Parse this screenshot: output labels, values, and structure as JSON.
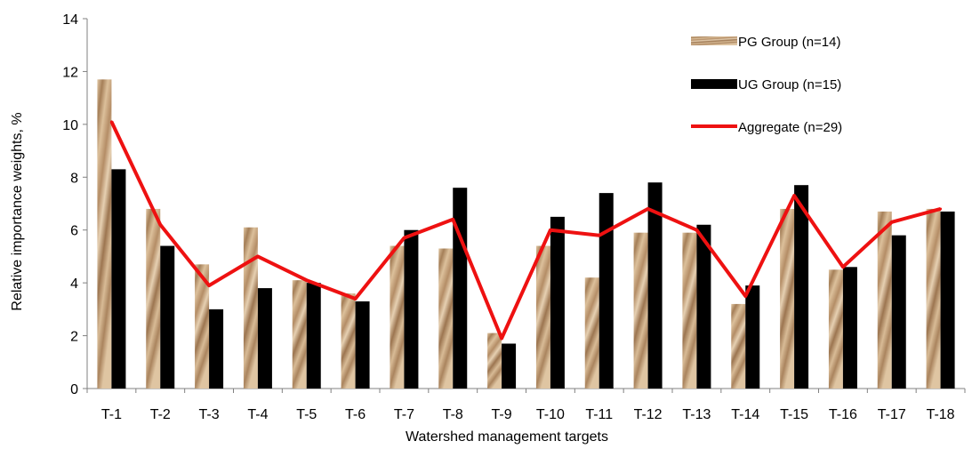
{
  "chart_data": {
    "type": "bar",
    "xlabel": "Watershed management targets",
    "ylabel": "Relative importance weights, %",
    "ylim": [
      0,
      14
    ],
    "yticks": [
      0,
      2,
      4,
      6,
      8,
      10,
      12,
      14
    ],
    "categories": [
      "T-1",
      "T-2",
      "T-3",
      "T-4",
      "T-5",
      "T-6",
      "T-7",
      "T-8",
      "T-9",
      "T-10",
      "T-11",
      "T-12",
      "T-13",
      "T-14",
      "T-15",
      "T-16",
      "T-17",
      "T-18"
    ],
    "series": [
      {
        "name": "PG Group (n=14)",
        "kind": "bar",
        "color": "#c8a27a",
        "values": [
          11.7,
          6.8,
          4.7,
          6.1,
          4.1,
          3.6,
          5.4,
          5.3,
          2.1,
          5.4,
          4.2,
          5.9,
          5.9,
          3.2,
          6.8,
          4.5,
          6.7,
          6.8
        ]
      },
      {
        "name": "UG Group (n=15)",
        "kind": "bar",
        "color": "#000000",
        "values": [
          8.3,
          5.4,
          3.0,
          3.8,
          4.0,
          3.3,
          6.0,
          7.6,
          1.7,
          6.5,
          7.4,
          7.8,
          6.2,
          3.9,
          7.7,
          4.6,
          5.8,
          6.7
        ]
      },
      {
        "name": "Aggregate (n=29)",
        "kind": "line",
        "color": "#ee1111",
        "values": [
          10.1,
          6.2,
          3.9,
          5.0,
          4.1,
          3.4,
          5.7,
          6.4,
          1.9,
          6.0,
          5.8,
          6.8,
          6.0,
          3.5,
          7.3,
          4.6,
          6.3,
          6.8
        ]
      }
    ],
    "grid": false,
    "legend_position": "top-right"
  }
}
